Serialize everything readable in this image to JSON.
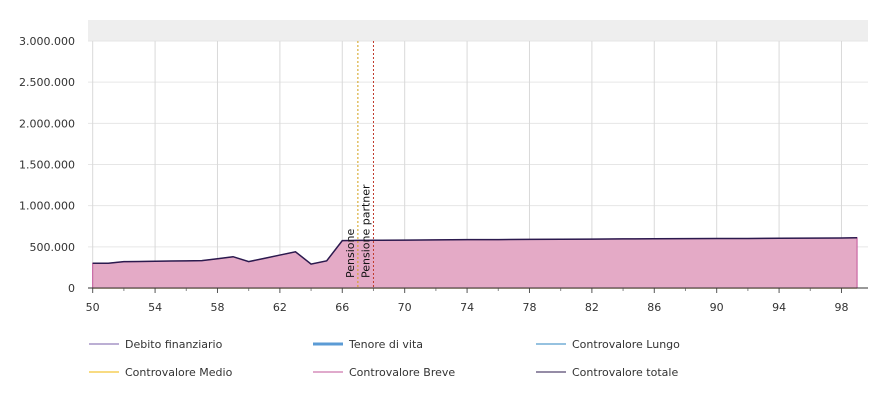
{
  "chart_data": {
    "type": "area",
    "x": [
      50,
      51,
      52,
      53,
      54,
      55,
      56,
      57,
      58,
      59,
      60,
      61,
      62,
      63,
      64,
      65,
      66,
      67,
      68,
      70,
      72,
      74,
      76,
      78,
      80,
      82,
      84,
      86,
      88,
      90,
      92,
      94,
      96,
      98,
      99
    ],
    "x_ticks": [
      "50",
      "54",
      "58",
      "62",
      "66",
      "70",
      "74",
      "78",
      "82",
      "86",
      "90",
      "94",
      "98"
    ],
    "y_ticks": [
      "0",
      "500.000",
      "1.000.000",
      "1.500.000",
      "2.000.000",
      "2.500.000",
      "3.000.000"
    ],
    "ylim": [
      0,
      3000000
    ],
    "xlim": [
      49.7,
      99.7
    ],
    "grid": true,
    "legend_position": "bottom",
    "series": [
      {
        "name": "Debito finanziario",
        "color": "#7a5fa8",
        "kind": "line",
        "values": [
          0,
          0,
          0,
          0,
          0,
          0,
          0,
          0,
          0,
          0,
          0,
          0,
          0,
          0,
          0,
          0,
          0,
          0,
          0,
          0,
          0,
          0,
          0,
          0,
          0,
          0,
          0,
          0,
          0,
          0,
          0,
          0,
          0,
          0,
          0
        ]
      },
      {
        "name": "Tenore di vita",
        "color": "#5b9bd5",
        "kind": "line",
        "values": [
          60000,
          60000,
          55000,
          55000,
          55000,
          55000,
          55000,
          55000,
          55000,
          55000,
          55000,
          30000,
          30000,
          30000,
          30000,
          30000,
          30000,
          30000,
          30000,
          30000,
          30000,
          30000,
          30000,
          30000,
          30000,
          30000,
          30000,
          30000,
          30000,
          30000,
          30000,
          30000,
          30000,
          30000,
          30000
        ]
      },
      {
        "name": "Controvalore Lungo",
        "color": "#2e86c1",
        "kind": "line",
        "values": [
          70000,
          70000,
          65000,
          65000,
          65000,
          65000,
          65000,
          65000,
          65000,
          65000,
          65000,
          40000,
          40000,
          40000,
          40000,
          40000,
          40000,
          40000,
          40000,
          40000,
          40000,
          40000,
          40000,
          40000,
          40000,
          40000,
          40000,
          40000,
          40000,
          40000,
          40000,
          40000,
          40000,
          40000,
          40000
        ]
      },
      {
        "name": "Controvalore Medio",
        "color": "#f2b705",
        "kind": "line",
        "values": [
          0,
          0,
          0,
          0,
          0,
          0,
          0,
          0,
          0,
          0,
          0,
          0,
          0,
          0,
          0,
          0,
          0,
          0,
          0,
          0,
          0,
          0,
          0,
          0,
          0,
          0,
          0,
          0,
          0,
          0,
          0,
          0,
          0,
          0,
          0
        ]
      },
      {
        "name": "Controvalore Breve",
        "color": "#c2559a",
        "kind": "area",
        "fill": "#e4aac6",
        "values": [
          300000,
          300000,
          320000,
          322000,
          325000,
          328000,
          330000,
          332000,
          355000,
          380000,
          320000,
          360000,
          400000,
          440000,
          290000,
          330000,
          575000,
          578000,
          580000,
          582000,
          585000,
          587000,
          588000,
          590000,
          592000,
          594000,
          596000,
          598000,
          600000,
          601000,
          602000,
          604000,
          606000,
          608000,
          610000
        ]
      },
      {
        "name": "Controvalore totale",
        "color": "#2b1a4e",
        "kind": "line",
        "values": [
          300000,
          300000,
          320000,
          322000,
          325000,
          328000,
          330000,
          332000,
          355000,
          380000,
          320000,
          360000,
          400000,
          440000,
          290000,
          330000,
          575000,
          578000,
          580000,
          582000,
          585000,
          587000,
          588000,
          590000,
          592000,
          594000,
          596000,
          598000,
          600000,
          601000,
          602000,
          604000,
          606000,
          608000,
          610000
        ]
      }
    ],
    "annotations": [
      {
        "x": 67,
        "label": "Pensione",
        "color": "#d4a017"
      },
      {
        "x": 68,
        "label": "Pensione partner",
        "color": "#c0392b"
      }
    ]
  },
  "legend": [
    {
      "label": "Debito finanziario",
      "color": "#7a5fa8",
      "width": 1
    },
    {
      "label": "Tenore di vita",
      "color": "#5b9bd5",
      "width": 3
    },
    {
      "label": "Controvalore Lungo",
      "color": "#2e86c1",
      "width": 1
    },
    {
      "label": "Controvalore Medio",
      "color": "#f2b705",
      "width": 1
    },
    {
      "label": "Controvalore Breve",
      "color": "#c2559a",
      "width": 1
    },
    {
      "label": "Controvalore totale",
      "color": "#2b1a4e",
      "width": 1
    }
  ]
}
